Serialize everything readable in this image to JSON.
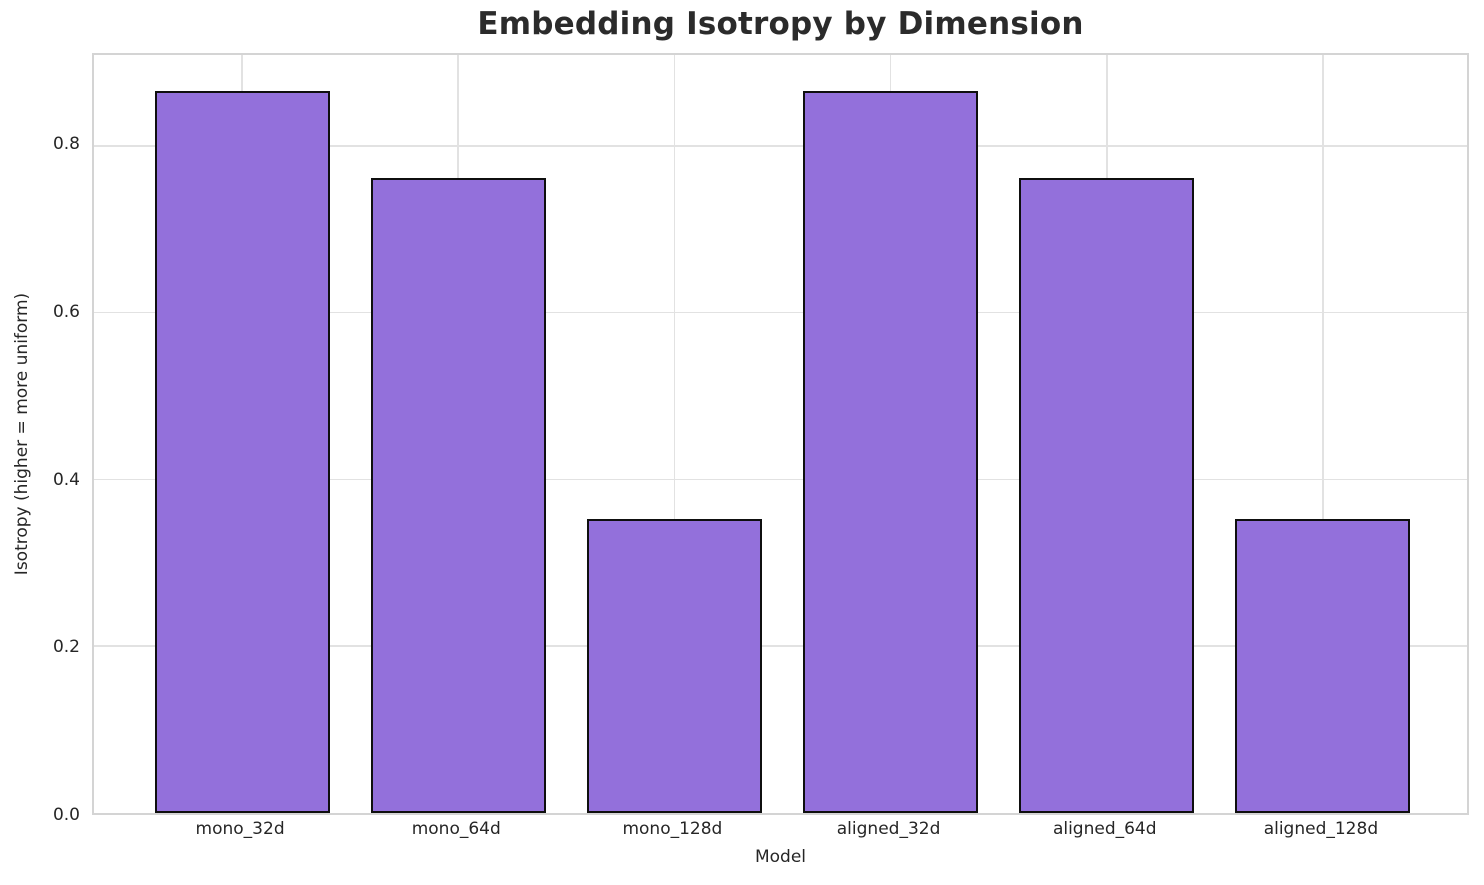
{
  "chart_data": {
    "type": "bar",
    "title": "Embedding Isotropy by Dimension",
    "xlabel": "Model",
    "ylabel": "Isotropy (higher = more uniform)",
    "categories": [
      "mono_32d",
      "mono_64d",
      "mono_128d",
      "aligned_32d",
      "aligned_64d",
      "aligned_128d"
    ],
    "values": [
      0.866,
      0.762,
      0.353,
      0.866,
      0.762,
      0.353
    ],
    "ylim": [
      0,
      0.909
    ],
    "yticks": [
      0.0,
      0.2,
      0.4,
      0.6,
      0.8
    ],
    "ytick_labels": [
      "0.0",
      "0.2",
      "0.4",
      "0.6",
      "0.8"
    ],
    "grid": true,
    "legend": "none",
    "bar_color": "#9370DB",
    "bar_edge_color": "#0f0f0f",
    "grid_color": "#e2e2e2",
    "spine_color": "#d4d4d4",
    "text_color": "#262626",
    "title_color": "#2b2b2b"
  }
}
